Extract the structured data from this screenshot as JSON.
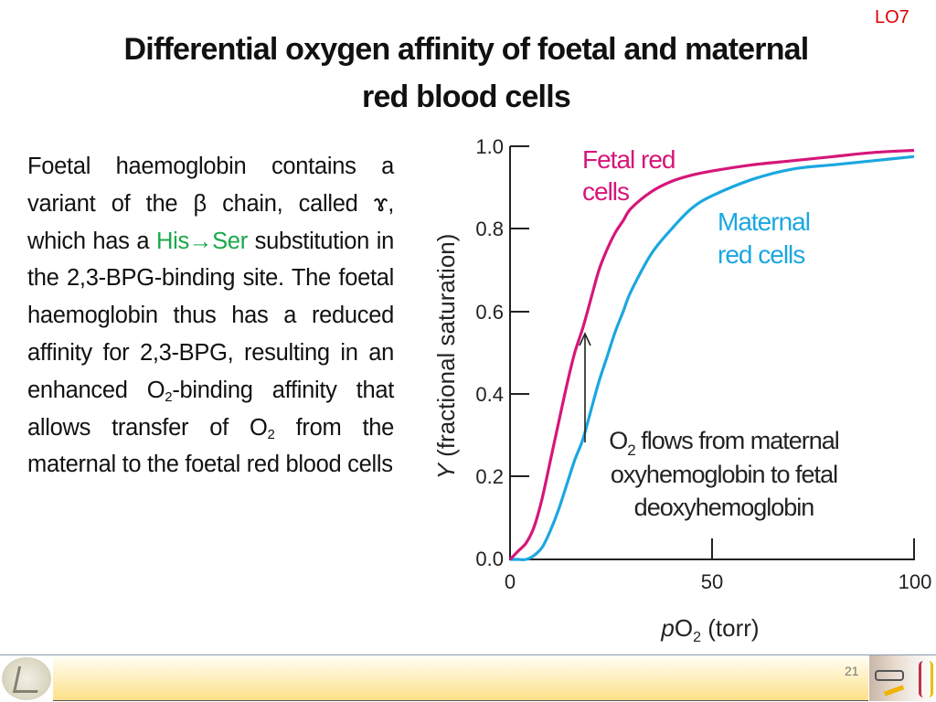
{
  "slide": {
    "lo_tag": "LO7",
    "title_line1": "Differential oxygen affinity of foetal and maternal",
    "title_line2": "red blood cells",
    "page_number": "21"
  },
  "body": {
    "p1": "Foetal haemoglobin contains a variant of the β chain, called ɤ, which has a ",
    "highlight": "His→Ser",
    "p2": " substitution in the 2,3-BPG-binding site. The foetal haemoglobin thus has a reduced affinity for 2,3-BPG, resulting in an enhanced O",
    "sub1": "2",
    "p3": "-binding affinity that allows transfer of O",
    "sub2": "2",
    "p4": " from the maternal to the foetal red blood cells",
    "highlight_color": "#1aa84a"
  },
  "chart_data": {
    "type": "line",
    "title": "",
    "xlabel": "pO2 (torr)",
    "ylabel": "Y (fractional saturation)",
    "xlim": [
      0,
      100
    ],
    "ylim": [
      0,
      1.0
    ],
    "x_ticks": [
      "0",
      "50",
      "100"
    ],
    "y_ticks": [
      "0.0",
      "0.2",
      "0.4",
      "0.6",
      "0.8",
      "1.0"
    ],
    "grid": false,
    "legend_position": "inline labels",
    "series": [
      {
        "name": "Fetal red cells",
        "color": "#d6167a",
        "x": [
          0,
          2,
          4,
          6,
          8,
          10,
          12,
          14,
          16,
          18,
          20,
          22,
          24,
          26,
          28,
          30,
          35,
          40,
          45,
          50,
          60,
          70,
          80,
          90,
          100
        ],
        "y": [
          0.0,
          0.02,
          0.04,
          0.08,
          0.15,
          0.24,
          0.33,
          0.42,
          0.5,
          0.56,
          0.63,
          0.7,
          0.75,
          0.79,
          0.82,
          0.85,
          0.89,
          0.915,
          0.93,
          0.94,
          0.955,
          0.965,
          0.975,
          0.985,
          0.99
        ]
      },
      {
        "name": "Maternal red cells",
        "color": "#1ba7e0",
        "x": [
          0,
          2,
          4,
          6,
          8,
          10,
          12,
          14,
          16,
          18,
          20,
          22,
          24,
          26,
          28,
          30,
          35,
          40,
          45,
          50,
          60,
          70,
          80,
          90,
          100
        ],
        "y": [
          0.0,
          0.0,
          0.0,
          0.01,
          0.03,
          0.07,
          0.12,
          0.18,
          0.24,
          0.29,
          0.36,
          0.43,
          0.49,
          0.55,
          0.6,
          0.65,
          0.74,
          0.8,
          0.85,
          0.88,
          0.92,
          0.945,
          0.955,
          0.965,
          0.975
        ]
      }
    ],
    "annotations": [
      {
        "text": "Fetal red cells",
        "line1": "Fetal red",
        "line2": "cells",
        "color": "#d6167a"
      },
      {
        "text": "Maternal red cells",
        "line1": "Maternal",
        "line2": "red cells",
        "color": "#1ba7e0"
      },
      {
        "text": "O2 flows from maternal oxyhemoglobin to fetal deoxyhemoglobin",
        "line1a": "O",
        "line1sub": "2",
        "line1b": " flows from maternal",
        "line2": "oxyhemoglobin to fetal",
        "line3": "deoxyhemoglobin",
        "arrow_x": 18.5,
        "arrow_from_y": 0.29,
        "arrow_to_y": 0.55
      }
    ]
  }
}
